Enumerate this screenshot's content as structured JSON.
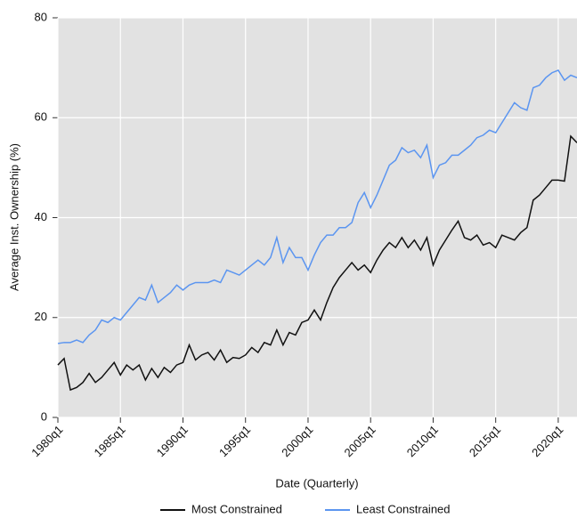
{
  "chart_data": {
    "type": "line",
    "x_label": "Date (Quarterly)",
    "y_label": "Average Inst. Ownership (%)",
    "x": [
      1980,
      1980.5,
      1981,
      1981.5,
      1982,
      1982.5,
      1983,
      1983.5,
      1984,
      1984.5,
      1985,
      1985.5,
      1986,
      1986.5,
      1987,
      1987.5,
      1988,
      1988.5,
      1989,
      1989.5,
      1990,
      1990.5,
      1991,
      1991.5,
      1992,
      1992.5,
      1993,
      1993.5,
      1994,
      1994.5,
      1995,
      1995.5,
      1996,
      1996.5,
      1997,
      1997.5,
      1998,
      1998.5,
      1999,
      1999.5,
      2000,
      2000.5,
      2001,
      2001.5,
      2002,
      2002.5,
      2003,
      2003.5,
      2004,
      2004.5,
      2005,
      2005.5,
      2006,
      2006.5,
      2007,
      2007.5,
      2008,
      2008.5,
      2009,
      2009.5,
      2010,
      2010.5,
      2011,
      2011.5,
      2012,
      2012.5,
      2013,
      2013.5,
      2014,
      2014.5,
      2015,
      2015.5,
      2016,
      2016.5,
      2017,
      2017.5,
      2018,
      2018.5,
      2019,
      2019.5,
      2020,
      2020.5,
      2021,
      2021.5
    ],
    "series": [
      {
        "name": "Most Constrained",
        "color": "#111111",
        "values": [
          10.5,
          11.8,
          5.5,
          6,
          7,
          8.8,
          7,
          8,
          9.5,
          11,
          8.5,
          10.5,
          9.5,
          10.5,
          7.5,
          9.8,
          8,
          10,
          9,
          10.5,
          11,
          14.5,
          11.5,
          12.5,
          13,
          11.5,
          13.5,
          11,
          12,
          11.8,
          12.5,
          14,
          13,
          15,
          14.5,
          17.5,
          14.5,
          17,
          16.5,
          19,
          19.5,
          21.5,
          19.5,
          23,
          26,
          28,
          29.5,
          31,
          29.5,
          30.5,
          29,
          31.5,
          33.5,
          35,
          34,
          36,
          34,
          35.5,
          33.5,
          36,
          30.5,
          33.5,
          35.5,
          37.5,
          39.3,
          36,
          35.5,
          36.5,
          34.5,
          35,
          34,
          36.5,
          36,
          35.5,
          37,
          38,
          43.5,
          44.5,
          46,
          47.5,
          47.5,
          47.3,
          56.3,
          55
        ]
      },
      {
        "name": "Least Constrained",
        "color": "#5b95f0",
        "values": [
          14.8,
          15,
          15,
          15.5,
          15,
          16.5,
          17.5,
          19.5,
          19,
          20,
          19.5,
          21,
          22.5,
          24,
          23.5,
          26.5,
          23,
          24,
          25,
          26.5,
          25.5,
          26.5,
          27,
          27,
          27,
          27.5,
          27,
          29.5,
          29,
          28.5,
          29.5,
          30.5,
          31.5,
          30.5,
          32,
          36,
          31,
          34,
          32,
          32,
          29.5,
          32.5,
          35,
          36.5,
          36.5,
          38,
          38,
          39,
          43,
          45,
          42,
          44.5,
          47.5,
          50.5,
          51.5,
          54,
          53,
          53.5,
          52,
          54.5,
          48,
          50.5,
          51,
          52.5,
          52.5,
          53.5,
          54.5,
          56,
          56.5,
          57.5,
          57,
          59,
          61,
          63,
          62,
          61.5,
          66,
          66.5,
          68,
          69,
          69.5,
          67.5,
          68.5,
          68
        ]
      }
    ],
    "xlim": [
      1980,
      2021.5
    ],
    "ylim": [
      0,
      80
    ],
    "xticks": [
      {
        "value": 1980,
        "label": "1980q1"
      },
      {
        "value": 1985,
        "label": "1985q1"
      },
      {
        "value": 1990,
        "label": "1990q1"
      },
      {
        "value": 1995,
        "label": "1995q1"
      },
      {
        "value": 2000,
        "label": "2000q1"
      },
      {
        "value": 2005,
        "label": "2005q1"
      },
      {
        "value": 2010,
        "label": "2010q1"
      },
      {
        "value": 2015,
        "label": "2015q1"
      },
      {
        "value": 2020,
        "label": "2020q1"
      }
    ],
    "yticks": [
      0,
      20,
      40,
      60,
      80
    ],
    "grid": true,
    "legend": "bottom"
  }
}
